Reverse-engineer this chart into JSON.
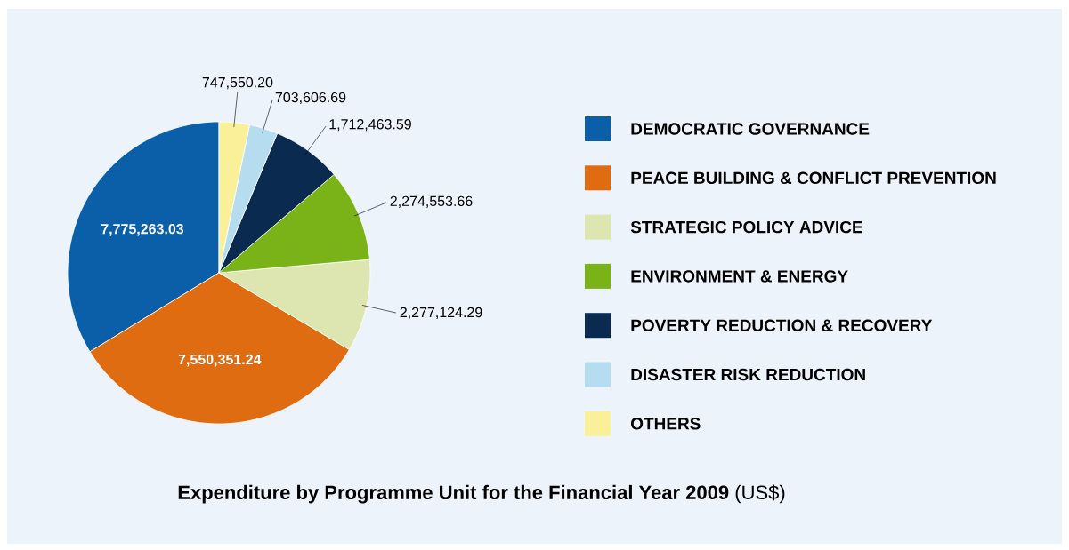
{
  "chart_data": {
    "type": "pie",
    "title": "**Expenditure by Programme Unit for the Financial Year 2009** (US$)",
    "categories": [
      "DEMOCRATIC GOVERNANCE",
      "PEACE BUILDING & CONFLICT PREVENTION",
      "STRATEGIC POLICY ADVICE",
      "ENVIRONMENT & ENERGY",
      "POVERTY REDUCTION & RECOVERY",
      "DISASTER RISK REDUCTION",
      "OTHERS"
    ],
    "values": [
      7775263.03,
      7550351.24,
      2277124.29,
      2274553.66,
      1712463.59,
      703606.69,
      747550.2
    ],
    "value_labels": [
      "7,775,263.03",
      "7,550,351.24",
      "2,277,124.29",
      "2,274,553.66",
      "1,712,463.59",
      "703,606.69",
      "747,550.20"
    ],
    "colors": [
      "#0a5fa8",
      "#e06c12",
      "#dde6b0",
      "#7ab317",
      "#0a2a4f",
      "#b6dcf0",
      "#fbf09a"
    ],
    "legend": "right"
  }
}
